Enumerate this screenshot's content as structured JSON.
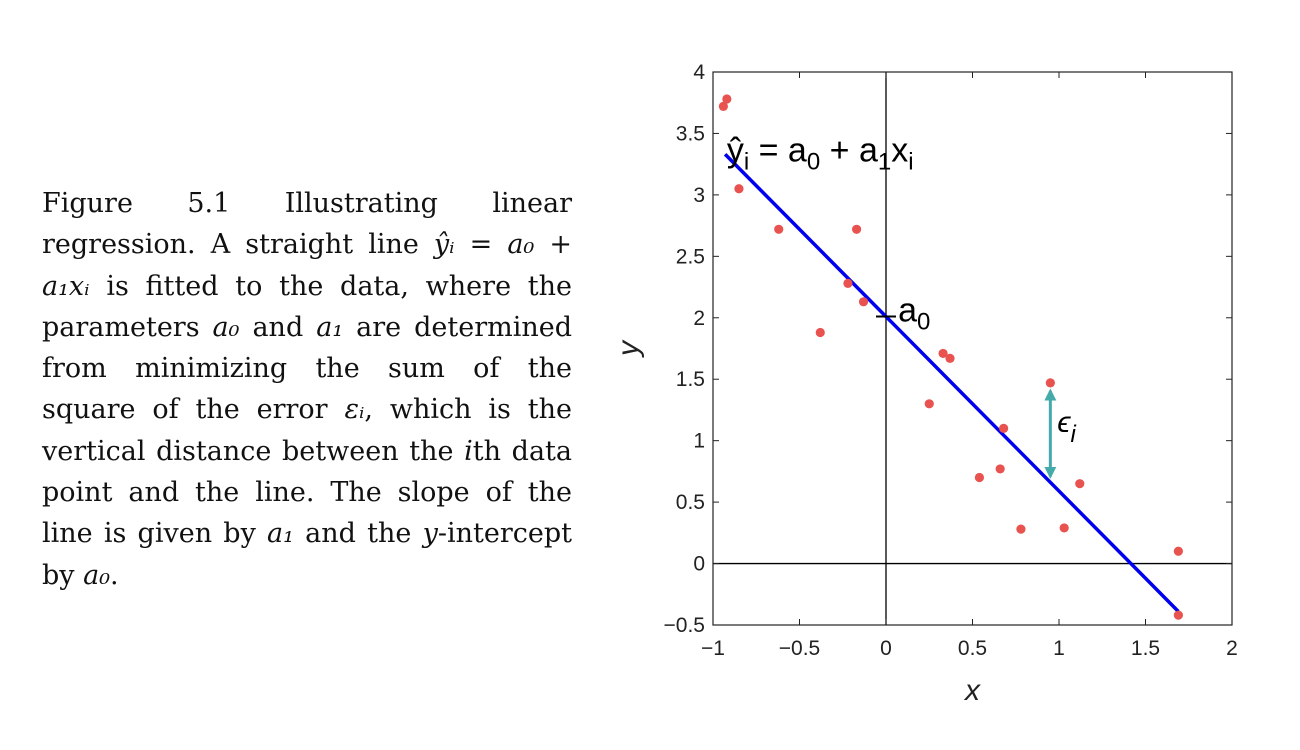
{
  "caption": {
    "label": "Figure 5.1",
    "text_1": "Illustrating linear regression. A straight line ",
    "eq_1": "ŷᵢ = a₀ + a₁xᵢ",
    "text_2": " is fitted to the data, where the parameters ",
    "a0": "a₀",
    "text_3": " and ",
    "a1": "a₁",
    "text_4": " are determined from minimizing the sum of the square of the error ",
    "eps": "εᵢ",
    "text_5": ", which is the vertical distance between the ",
    "i": "i",
    "text_6": "th data point and the line. The slope of the line is given by ",
    "a1b": "a₁",
    "text_7": " and the ",
    "y": "y",
    "text_8": "-intercept by ",
    "a0b": "a₀",
    "text_9": "."
  },
  "chart_data": {
    "type": "scatter",
    "xlabel": "x",
    "ylabel": "y",
    "xlim": [
      -1,
      2
    ],
    "ylim": [
      -0.5,
      4
    ],
    "xticks": [
      -1,
      -0.5,
      0,
      0.5,
      1,
      1.5,
      2
    ],
    "yticks": [
      -0.5,
      0,
      0.5,
      1,
      1.5,
      2,
      2.5,
      3,
      3.5,
      4
    ],
    "xtick_labels": [
      "−1",
      "−0.5",
      "0",
      "0.5",
      "1",
      "1.5",
      "2"
    ],
    "ytick_labels": [
      "−0.5",
      "0",
      "0.5",
      "1",
      "1.5",
      "2",
      "2.5",
      "3",
      "3.5",
      "4"
    ],
    "points": [
      {
        "x": -0.94,
        "y": 3.72
      },
      {
        "x": -0.92,
        "y": 3.78
      },
      {
        "x": -0.85,
        "y": 3.05
      },
      {
        "x": -0.62,
        "y": 2.72
      },
      {
        "x": -0.38,
        "y": 1.88
      },
      {
        "x": -0.22,
        "y": 2.28
      },
      {
        "x": -0.17,
        "y": 2.72
      },
      {
        "x": -0.13,
        "y": 2.13
      },
      {
        "x": 0.25,
        "y": 1.3
      },
      {
        "x": 0.33,
        "y": 1.71
      },
      {
        "x": 0.37,
        "y": 1.67
      },
      {
        "x": 0.54,
        "y": 0.7
      },
      {
        "x": 0.66,
        "y": 0.77
      },
      {
        "x": 0.68,
        "y": 1.1
      },
      {
        "x": 0.78,
        "y": 0.28
      },
      {
        "x": 0.95,
        "y": 1.47
      },
      {
        "x": 1.03,
        "y": 0.29
      },
      {
        "x": 1.12,
        "y": 0.65
      },
      {
        "x": 1.69,
        "y": 0.1
      },
      {
        "x": 1.69,
        "y": -0.42
      }
    ],
    "fit_line": {
      "a0": 2.01,
      "a1": -1.42,
      "x_start": -0.93,
      "x_end": 1.69,
      "color": "#0000ee"
    },
    "point_color": "#e8524f",
    "error_arrow": {
      "x": 0.95,
      "y_from": 1.47,
      "y_to": 0.66,
      "color": "#44aaaa"
    },
    "annotations": {
      "equation": {
        "yhat": "ŷ",
        "sub_i": "i",
        "eq_rest": " = a",
        "sub_0": "0",
        "plus": " + a",
        "sub_1": "1",
        "x": "x",
        "sub_i2": "i"
      },
      "intercept": {
        "a": "a",
        "sub_0": "0"
      },
      "epsilon": {
        "eps": "ϵ",
        "sub_i": "i"
      }
    }
  }
}
